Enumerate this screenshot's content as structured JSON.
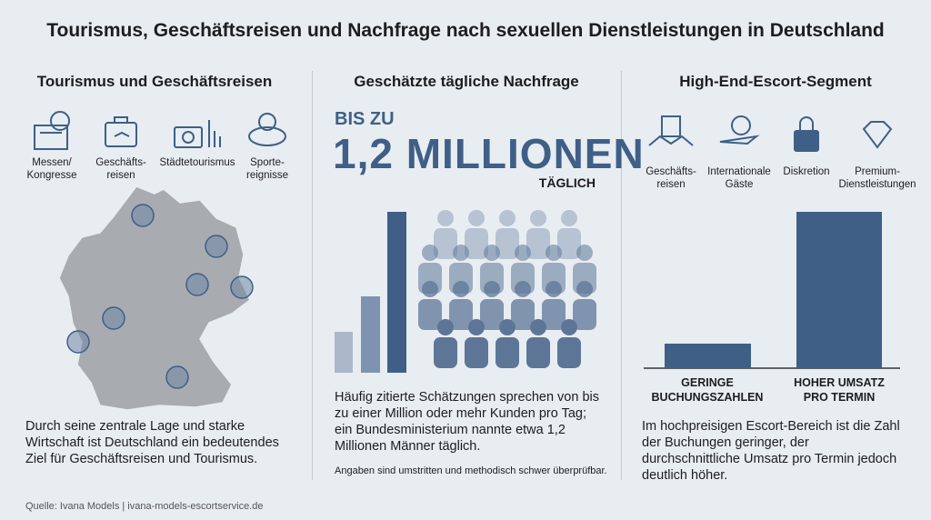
{
  "title": "Tourismus, Geschäftsreisen und Nachfrage nach sexuellen Dienstleistungen in Deutschland",
  "left": {
    "heading": "Tourismus und Geschäftsreisen",
    "icons": [
      "Messen/\nKongresse",
      "Geschäfts-\nreisen",
      "Städtetourismus",
      "Sporte-\nreignisse"
    ],
    "text": "Durch seine zentrale Lage und starke Wirtschaft ist Deutschland ein bedeutendes Ziel für Geschäftsreisen und Tourismus."
  },
  "middle": {
    "heading": "Geschätzte tägliche Nachfrage",
    "prefix": "BIS ZU",
    "headline": "1,2 MILLIONEN",
    "suffix": "TÄGLICH",
    "text": "Häufig zitierte Schätzungen sprechen von bis zu einer Million oder mehr Kunden pro Tag; ein Bundesministerium nannte etwa 1,2 Millionen Männer täglich.",
    "note": "Angaben sind umstritten und methodisch schwer überprüfbar."
  },
  "right": {
    "heading": "High-End-Escort-Segment",
    "icons": [
      "Geschäfts-\nreisen",
      "Internationale\nGäste",
      "Diskretion",
      "Premium-\nDienstleistungen"
    ],
    "bar_labels": [
      "GERINGE\nBUCHUNGSZAHLEN",
      "HOHER UMSATZ\nPRO TERMIN"
    ],
    "text": "Im hochpreisigen Escort-Bereich ist die Zahl der Buchungen geringer, der durchschnittliche Umsatz pro Termin jedoch deutlich höher."
  },
  "source": "Quelle: Ivana Models | ivana-models-escortservice.de"
}
